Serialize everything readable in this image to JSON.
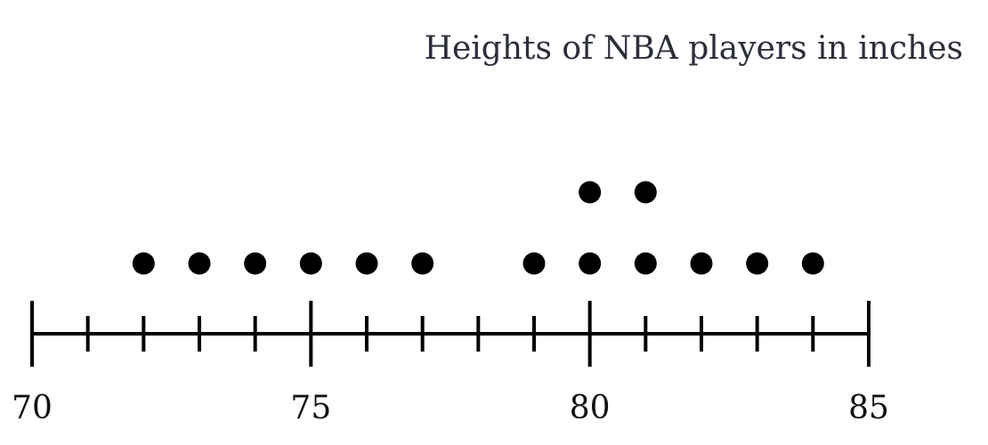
{
  "chart_data": {
    "type": "scatter",
    "subtype": "dot-plot",
    "title": "Heights of NBA players in inches",
    "xlabel": "",
    "ylabel": "",
    "xlim": [
      70,
      85
    ],
    "x_major_ticks": [
      70,
      75,
      80,
      85
    ],
    "x_minor_ticks": [
      71,
      72,
      73,
      74,
      76,
      77,
      78,
      79,
      81,
      82,
      83,
      84
    ],
    "tick_labels": [
      "70",
      "75",
      "80",
      "85"
    ],
    "grid": false,
    "legend": "none",
    "values": [
      72,
      73,
      74,
      75,
      76,
      77,
      79,
      80,
      80,
      81,
      81,
      82,
      83,
      84
    ],
    "counts": [
      {
        "x": 72,
        "count": 1
      },
      {
        "x": 73,
        "count": 1
      },
      {
        "x": 74,
        "count": 1
      },
      {
        "x": 75,
        "count": 1
      },
      {
        "x": 76,
        "count": 1
      },
      {
        "x": 77,
        "count": 1
      },
      {
        "x": 79,
        "count": 1
      },
      {
        "x": 80,
        "count": 2
      },
      {
        "x": 81,
        "count": 2
      },
      {
        "x": 82,
        "count": 1
      },
      {
        "x": 83,
        "count": 1
      },
      {
        "x": 84,
        "count": 1
      }
    ],
    "colors": {
      "marks": "#000000",
      "title": "#2b2f3a"
    }
  }
}
